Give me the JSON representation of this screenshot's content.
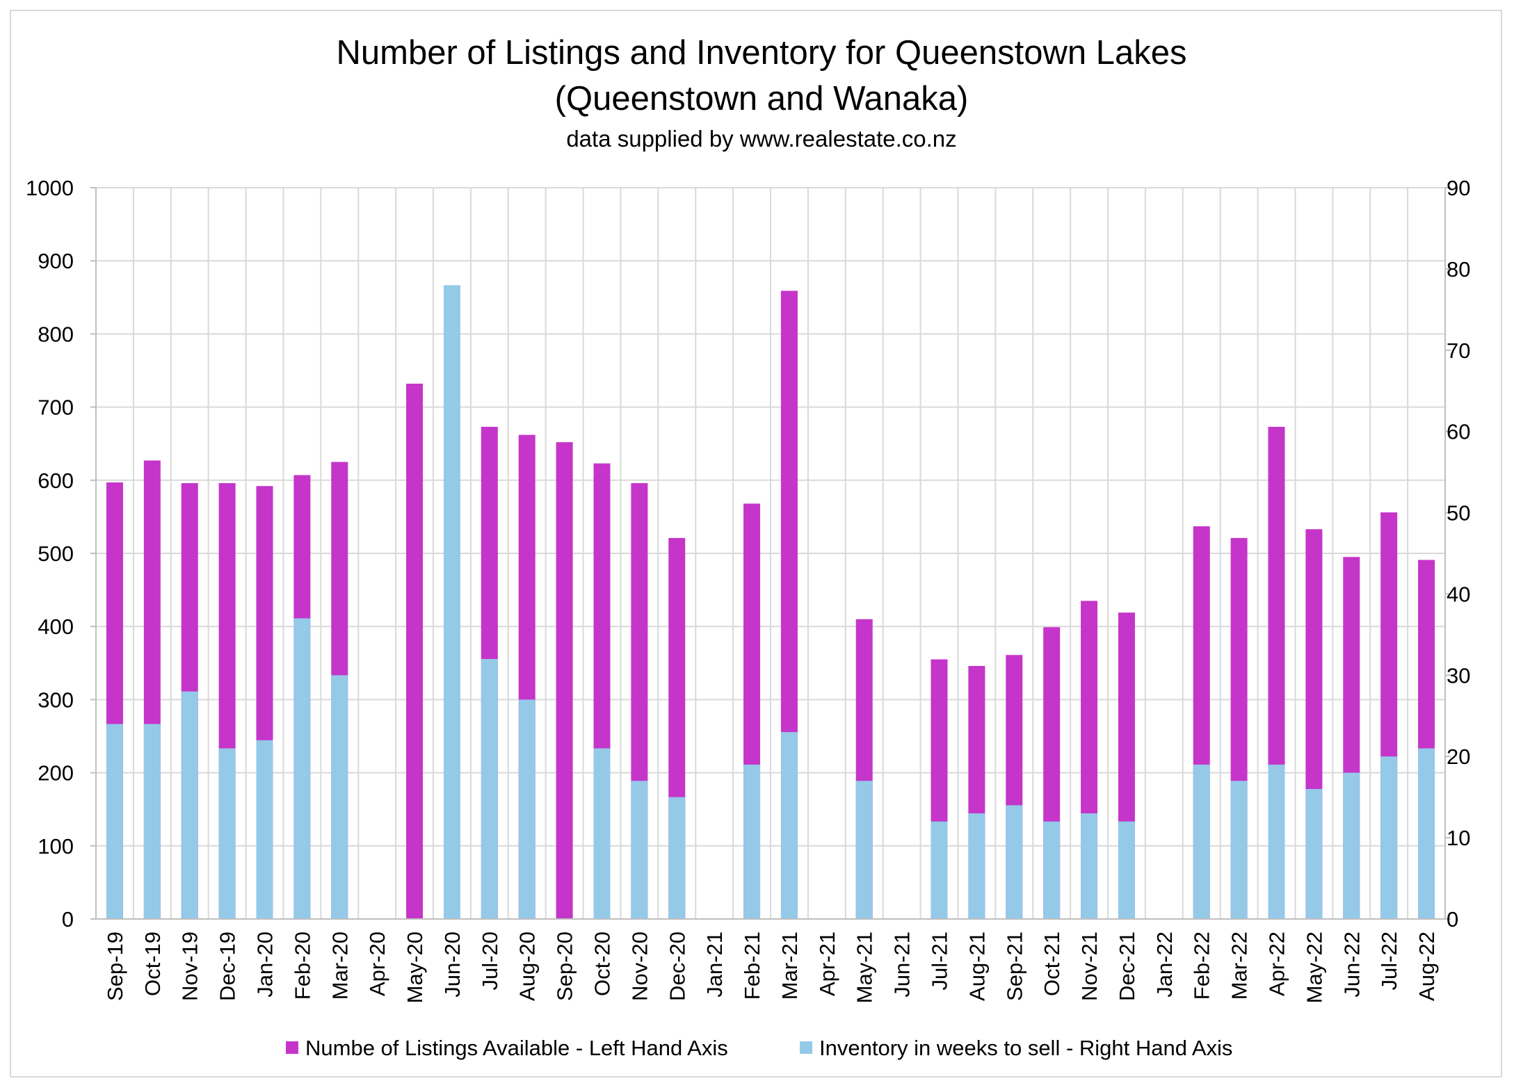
{
  "chart_data": {
    "type": "bar",
    "title": "Number of Listings and Inventory for Queenstown Lakes",
    "title_line2": "(Queenstown and Wanaka)",
    "subtitle": "data supplied by www.realestate.co.nz",
    "categories": [
      "Sep-19",
      "Oct-19",
      "Nov-19",
      "Dec-19",
      "Jan-20",
      "Feb-20",
      "Mar-20",
      "Apr-20",
      "May-20",
      "Jun-20",
      "Jul-20",
      "Aug-20",
      "Sep-20",
      "Oct-20",
      "Nov-20",
      "Dec-20",
      "Jan-21",
      "Feb-21",
      "Mar-21",
      "Apr-21",
      "May-21",
      "Jun-21",
      "Jul-21",
      "Aug-21",
      "Sep-21",
      "Oct-21",
      "Nov-21",
      "Dec-21",
      "Jan-22",
      "Feb-22",
      "Mar-22",
      "Apr-22",
      "May-22",
      "Jun-22",
      "Jul-22",
      "Aug-22"
    ],
    "series": [
      {
        "name": "Numbe of Listings Available - Left Hand Axis",
        "axis": "left",
        "color": "#c535c9",
        "values": [
          597,
          627,
          596,
          596,
          592,
          607,
          625,
          null,
          732,
          null,
          673,
          662,
          652,
          623,
          596,
          521,
          null,
          568,
          859,
          null,
          410,
          null,
          355,
          346,
          361,
          399,
          435,
          419,
          null,
          537,
          521,
          673,
          533,
          495,
          556,
          491
        ]
      },
      {
        "name": "Inventory in weeks to sell - Right Hand Axis",
        "axis": "right",
        "color": "#95c9e8",
        "values": [
          24,
          24,
          28,
          21,
          22,
          37,
          30,
          null,
          null,
          78,
          32,
          27,
          null,
          21,
          17,
          15,
          null,
          19,
          23,
          null,
          17,
          null,
          12,
          13,
          14,
          12,
          13,
          12,
          null,
          19,
          17,
          19,
          16,
          18,
          20,
          21
        ]
      }
    ],
    "left_axis": {
      "ylim": [
        0,
        1000
      ],
      "ticks": [
        "0",
        "100",
        "200",
        "300",
        "400",
        "500",
        "600",
        "700",
        "800",
        "900",
        "1000"
      ]
    },
    "right_axis": {
      "ylim": [
        0,
        90
      ],
      "ticks": [
        "0",
        "10",
        "20",
        "30",
        "40",
        "50",
        "60",
        "70",
        "80",
        "90"
      ]
    },
    "grid": true,
    "legend_position": "bottom"
  }
}
